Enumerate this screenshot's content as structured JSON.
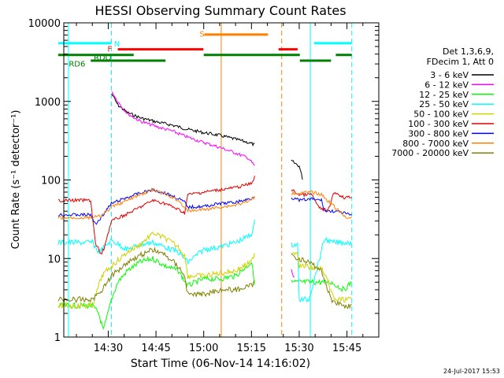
{
  "chart_data": {
    "type": "line",
    "title": "HESSI Observing Summary Count Rates",
    "xlabel": "Start Time (06-Nov-14 14:16:02)",
    "ylabel": "Count Rate (s⁻¹ detector⁻¹)",
    "y_scale": "log",
    "ylim": [
      1,
      10000
    ],
    "xlim": [
      "14:16:02",
      "15:55:00"
    ],
    "x_tick_labels": [
      "14:30",
      "14:45",
      "15:00",
      "15:15",
      "15:30",
      "15:45"
    ],
    "x_tick_minutes": [
      30,
      45,
      60,
      75,
      90,
      105
    ],
    "y_tick_labels": [
      "1",
      "10",
      "100",
      "1000",
      "10000"
    ],
    "y_ticks": [
      1,
      10,
      100,
      1000,
      10000
    ],
    "info_lines": [
      "Det 1,3,6,9,",
      "FDecim 1, Att 0"
    ],
    "date_stamp": "24-Jul-2017 15:53",
    "legend_position": "right",
    "flags": [
      {
        "name": "N",
        "color": "#00ffff",
        "level": 5500,
        "segments": [
          [
            14.27,
            31.0
          ],
          [
            94.7,
            106.5
          ]
        ]
      },
      {
        "name": "F",
        "color": "#ff0000",
        "level": 4600,
        "segments": [
          [
            33.0,
            59.9
          ],
          [
            83.5,
            89.5
          ]
        ]
      },
      {
        "name": "S",
        "color": "#ff8000",
        "level": 7100,
        "segments": [
          [
            60.2,
            80.2
          ]
        ]
      },
      {
        "name": "RDO",
        "color": "#008000",
        "level": 3900,
        "segments": [
          [
            14.27,
            38.0
          ],
          [
            60.0,
            90.2
          ],
          [
            101.5,
            106.5
          ]
        ]
      },
      {
        "name": "RD6",
        "color": "#008000",
        "level": 3300,
        "segments": [
          [
            24.5,
            48.0
          ],
          [
            90.2,
            100.0
          ]
        ]
      }
    ],
    "x_unit": "minutes past 14:00",
    "vlines": [
      {
        "color": "#00ffff",
        "style": "dashed",
        "x": 31.0
      },
      {
        "color": "#ff8000",
        "style": "solid",
        "x": 65.5
      },
      {
        "color": "#ff8000",
        "style": "dashed",
        "x": 84.5
      },
      {
        "color": "#00ffff",
        "style": "solid",
        "x": 93.5
      },
      {
        "color": "#00ffff",
        "style": "dashed",
        "x": 106.5
      },
      {
        "color": "#00ffff",
        "style": "solid",
        "x": 17.5
      }
    ],
    "series": [
      {
        "name": "3 - 6 keV",
        "color": "#000000",
        "points": [
          [
            31.1,
            1250
          ],
          [
            33,
            900
          ],
          [
            36,
            720
          ],
          [
            40,
            620
          ],
          [
            45,
            550
          ],
          [
            50,
            500
          ],
          [
            55,
            440
          ],
          [
            60,
            400
          ],
          [
            65,
            370
          ],
          [
            70,
            330
          ],
          [
            74,
            300
          ],
          [
            76,
            280
          ],
          [
            null,
            null
          ],
          [
            87.5,
            175
          ],
          [
            90,
            150
          ],
          [
            91,
            105
          ]
        ]
      },
      {
        "name": "6 - 12 keV",
        "color": "#ff00ff",
        "points": [
          [
            31.1,
            1350
          ],
          [
            33,
            1000
          ],
          [
            36,
            700
          ],
          [
            40,
            560
          ],
          [
            45,
            480
          ],
          [
            50,
            420
          ],
          [
            55,
            350
          ],
          [
            60,
            300
          ],
          [
            65,
            260
          ],
          [
            70,
            220
          ],
          [
            74,
            190
          ],
          [
            76,
            150
          ],
          [
            null,
            null
          ],
          [
            87.5,
            7
          ],
          [
            88.5,
            5.5
          ]
        ]
      },
      {
        "name": "12 - 25 keV",
        "color": "#00ff00",
        "points": [
          [
            14.27,
            2.5
          ],
          [
            25,
            2.5
          ],
          [
            27,
            2
          ],
          [
            28.5,
            1.2
          ],
          [
            31,
            3
          ],
          [
            33,
            5
          ],
          [
            36,
            7
          ],
          [
            40,
            9
          ],
          [
            44,
            10
          ],
          [
            48,
            8
          ],
          [
            52,
            7
          ],
          [
            55,
            4.5
          ],
          [
            60,
            5.5
          ],
          [
            65,
            5.5
          ],
          [
            70,
            6
          ],
          [
            75,
            9
          ],
          [
            76,
            5
          ],
          [
            null,
            null
          ],
          [
            87.5,
            5
          ],
          [
            93,
            5
          ],
          [
            96,
            5
          ],
          [
            100,
            5
          ],
          [
            104,
            4
          ],
          [
            106.5,
            5
          ]
        ]
      },
      {
        "name": "25 - 50 keV",
        "color": "#00ffff",
        "points": [
          [
            14.27,
            16
          ],
          [
            25,
            16
          ],
          [
            27,
            12
          ],
          [
            31,
            17
          ],
          [
            36,
            13
          ],
          [
            40,
            15
          ],
          [
            44,
            16
          ],
          [
            48,
            14
          ],
          [
            52,
            12
          ],
          [
            55,
            9
          ],
          [
            60,
            13
          ],
          [
            65,
            14
          ],
          [
            70,
            16
          ],
          [
            75,
            20
          ],
          [
            76,
            30
          ],
          [
            null,
            null
          ],
          [
            87.5,
            15
          ],
          [
            89.5,
            15
          ],
          [
            90,
            3
          ],
          [
            93,
            3
          ],
          [
            95,
            6
          ],
          [
            98,
            18
          ],
          [
            100,
            16
          ],
          [
            104,
            16
          ],
          [
            106.5,
            16
          ]
        ]
      },
      {
        "name": "50 - 100 keV",
        "color": "#d0d000",
        "points": [
          [
            14.27,
            2.5
          ],
          [
            25,
            2.5
          ],
          [
            28,
            6
          ],
          [
            31,
            8
          ],
          [
            36,
            12
          ],
          [
            40,
            15
          ],
          [
            44,
            21
          ],
          [
            48,
            18
          ],
          [
            52,
            14
          ],
          [
            54,
            11
          ],
          [
            55,
            6
          ],
          [
            60,
            6
          ],
          [
            65,
            6.5
          ],
          [
            70,
            7
          ],
          [
            75,
            9
          ],
          [
            76,
            12
          ],
          [
            null,
            null
          ],
          [
            87.5,
            12
          ],
          [
            89.5,
            12
          ],
          [
            90,
            8
          ],
          [
            92,
            8
          ],
          [
            94,
            7.5
          ],
          [
            97,
            7.5
          ],
          [
            99,
            5
          ],
          [
            101,
            3
          ],
          [
            104,
            3
          ],
          [
            106.5,
            3
          ]
        ]
      },
      {
        "name": "100 - 300 keV",
        "color": "#e00000",
        "points": [
          [
            14.27,
            55
          ],
          [
            24.5,
            55
          ],
          [
            26,
            15
          ],
          [
            28,
            11
          ],
          [
            31,
            30
          ],
          [
            36,
            37
          ],
          [
            40,
            45
          ],
          [
            44,
            55
          ],
          [
            48,
            50
          ],
          [
            52,
            42
          ],
          [
            54,
            38
          ],
          [
            55,
            65
          ],
          [
            60,
            70
          ],
          [
            65,
            75
          ],
          [
            70,
            80
          ],
          [
            75,
            90
          ],
          [
            76,
            110
          ],
          [
            null,
            null
          ],
          [
            87.5,
            75
          ],
          [
            90,
            65
          ],
          [
            94,
            65
          ],
          [
            96,
            45
          ],
          [
            99,
            40
          ],
          [
            101,
            70
          ],
          [
            104,
            60
          ],
          [
            106.5,
            60
          ]
        ]
      },
      {
        "name": "300 - 800 keV",
        "color": "#0000ff",
        "points": [
          [
            14.27,
            36
          ],
          [
            24.5,
            36
          ],
          [
            26,
            27
          ],
          [
            31,
            50
          ],
          [
            36,
            60
          ],
          [
            40,
            68
          ],
          [
            44,
            75
          ],
          [
            48,
            68
          ],
          [
            52,
            58
          ],
          [
            54,
            52
          ],
          [
            55,
            45
          ],
          [
            60,
            46
          ],
          [
            65,
            50
          ],
          [
            70,
            52
          ],
          [
            75,
            58
          ],
          [
            76,
            63
          ],
          [
            null,
            null
          ],
          [
            87.5,
            60
          ],
          [
            90,
            55
          ],
          [
            94,
            57
          ],
          [
            97,
            55
          ],
          [
            98,
            40
          ],
          [
            101,
            40
          ],
          [
            104,
            38
          ],
          [
            106.5,
            35
          ]
        ]
      },
      {
        "name": "800 - 7000 keV",
        "color": "#ff8000",
        "points": [
          [
            14.27,
            33
          ],
          [
            24.5,
            33
          ],
          [
            28,
            35
          ],
          [
            31,
            45
          ],
          [
            36,
            55
          ],
          [
            40,
            65
          ],
          [
            44,
            75
          ],
          [
            48,
            65
          ],
          [
            52,
            55
          ],
          [
            54,
            45
          ],
          [
            55,
            40
          ],
          [
            60,
            42
          ],
          [
            65,
            45
          ],
          [
            70,
            48
          ],
          [
            75,
            55
          ],
          [
            76,
            62
          ],
          [
            null,
            null
          ],
          [
            87.5,
            68
          ],
          [
            90,
            68
          ],
          [
            94,
            70
          ],
          [
            97,
            65
          ],
          [
            100,
            50
          ],
          [
            104,
            35
          ],
          [
            106.5,
            32
          ]
        ]
      },
      {
        "name": "7000 - 20000 keV",
        "color": "#808000",
        "points": [
          [
            14.27,
            3
          ],
          [
            25,
            3
          ],
          [
            28,
            4
          ],
          [
            31,
            6
          ],
          [
            36,
            9
          ],
          [
            40,
            11
          ],
          [
            44,
            13
          ],
          [
            48,
            11
          ],
          [
            52,
            8
          ],
          [
            54,
            6
          ],
          [
            55,
            3.5
          ],
          [
            60,
            3.5
          ],
          [
            65,
            4
          ],
          [
            70,
            4
          ],
          [
            75,
            4.5
          ],
          [
            76,
            5
          ],
          [
            null,
            null
          ],
          [
            87.5,
            11
          ],
          [
            90,
            10
          ],
          [
            94,
            8.5
          ],
          [
            97,
            7
          ],
          [
            100,
            3
          ],
          [
            104,
            2.5
          ],
          [
            106.5,
            2.5
          ]
        ]
      }
    ]
  }
}
